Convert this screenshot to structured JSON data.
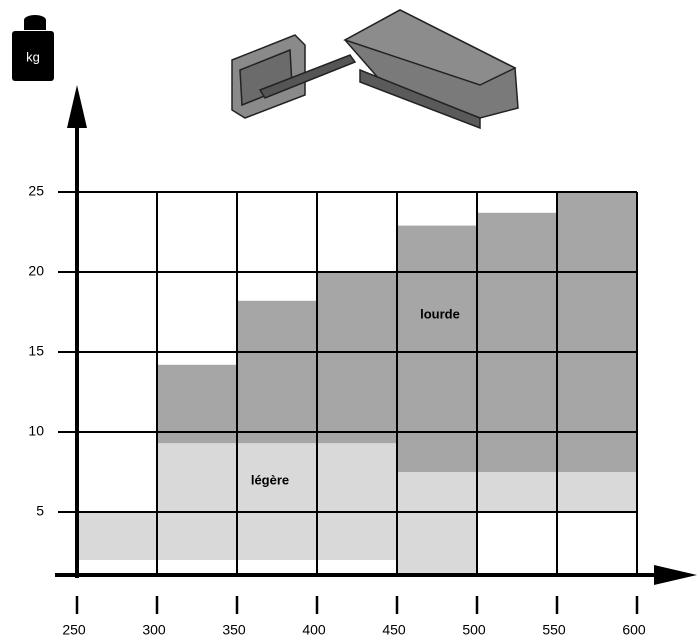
{
  "chart_data": {
    "type": "range",
    "y_label": "kg",
    "bins": [
      250,
      300,
      350,
      400,
      450,
      500,
      550,
      600
    ],
    "series": [
      {
        "name": "légère",
        "color": "#d9d9d9",
        "low": [
          2,
          2,
          2,
          2,
          1,
          5,
          5
        ],
        "high": [
          5,
          9.3,
          9.3,
          9.3,
          7.5,
          7.5,
          7.5
        ]
      },
      {
        "name": "lourde",
        "color": "#a6a6a6",
        "low": [
          null,
          9.3,
          9.3,
          9.3,
          7.5,
          7.5,
          7.5
        ],
        "high": [
          null,
          14.2,
          18.2,
          20,
          22.9,
          23.7,
          25
        ]
      }
    ],
    "xlim": [
      250,
      600
    ],
    "xticks": [
      250,
      300,
      350,
      400,
      450,
      500,
      550,
      600
    ],
    "ylim": [
      0,
      25
    ],
    "yticks": [
      5,
      10,
      15,
      20,
      25
    ],
    "grid": true
  }
}
